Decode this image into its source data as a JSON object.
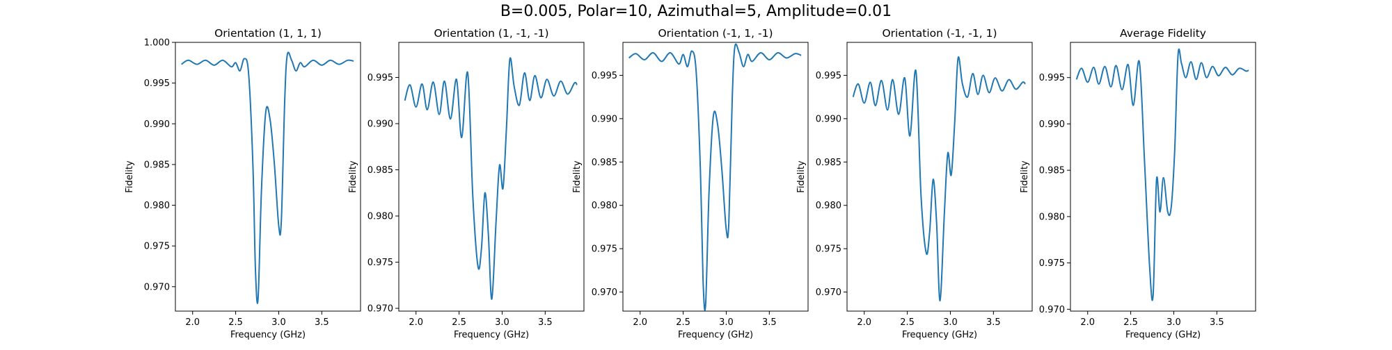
{
  "figure": {
    "title": "B=0.005, Polar=10, Azimuthal=5, Amplitude=0.01"
  },
  "colors": {
    "line": "#1f77b4",
    "axes": "#000000",
    "background": "#ffffff"
  },
  "chart_data": [
    {
      "type": "line",
      "title": "Orientation (1, 1, 1)",
      "xlabel": "Frequency (GHz)",
      "ylabel": "Fidelity",
      "xlim": [
        1.8,
        3.95
      ],
      "ylim": [
        0.967,
        1.0
      ],
      "xticks": [
        2.0,
        2.5,
        3.0,
        3.5
      ],
      "xtick_labels": [
        "2.0",
        "2.5",
        "3.0",
        "3.5"
      ],
      "yticks": [
        0.97,
        0.975,
        0.98,
        0.985,
        0.99,
        0.995,
        1.0
      ],
      "ytick_labels": [
        "0.970",
        "0.975",
        "0.980",
        "0.985",
        "0.990",
        "0.995",
        "1.000"
      ],
      "grid": false,
      "series": [
        {
          "x": [
            1.87,
            1.95,
            2.05,
            2.15,
            2.25,
            2.35,
            2.45,
            2.5,
            2.55,
            2.6,
            2.65,
            2.7,
            2.73,
            2.76,
            2.8,
            2.85,
            2.9,
            2.95,
            3.0,
            3.03,
            3.07,
            3.1,
            3.15,
            3.2,
            3.25,
            3.3,
            3.4,
            3.5,
            3.6,
            3.7,
            3.8,
            3.87
          ],
          "y": [
            0.9973,
            0.9978,
            0.9973,
            0.9978,
            0.9972,
            0.9978,
            0.997,
            0.9975,
            0.9965,
            0.998,
            0.9962,
            0.985,
            0.972,
            0.9685,
            0.982,
            0.9915,
            0.9905,
            0.985,
            0.9775,
            0.978,
            0.993,
            0.9985,
            0.9978,
            0.9965,
            0.9975,
            0.997,
            0.9978,
            0.9972,
            0.9978,
            0.9973,
            0.9978,
            0.9977
          ]
        }
      ]
    },
    {
      "type": "line",
      "title": "Orientation (1, -1, -1)",
      "xlabel": "Frequency (GHz)",
      "ylabel": "Fidelity",
      "xlim": [
        1.8,
        3.95
      ],
      "ylim": [
        0.9697,
        0.9988
      ],
      "xticks": [
        2.0,
        2.5,
        3.0,
        3.5
      ],
      "xtick_labels": [
        "2.0",
        "2.5",
        "3.0",
        "3.5"
      ],
      "yticks": [
        0.97,
        0.975,
        0.98,
        0.985,
        0.99,
        0.995
      ],
      "ytick_labels": [
        "0.970",
        "0.975",
        "0.980",
        "0.985",
        "0.990",
        "0.995"
      ],
      "grid": false,
      "series": [
        {
          "x": [
            1.87,
            1.93,
            2.0,
            2.07,
            2.13,
            2.2,
            2.27,
            2.33,
            2.4,
            2.47,
            2.53,
            2.6,
            2.66,
            2.72,
            2.76,
            2.8,
            2.84,
            2.88,
            2.93,
            2.97,
            3.01,
            3.05,
            3.09,
            3.14,
            3.2,
            3.26,
            3.32,
            3.38,
            3.45,
            3.52,
            3.6,
            3.68,
            3.76,
            3.84,
            3.87
          ],
          "y": [
            0.9925,
            0.9942,
            0.9918,
            0.9943,
            0.9915,
            0.9945,
            0.991,
            0.9946,
            0.9905,
            0.9948,
            0.9885,
            0.9955,
            0.982,
            0.9745,
            0.9765,
            0.9825,
            0.978,
            0.971,
            0.9795,
            0.9855,
            0.983,
            0.9895,
            0.997,
            0.994,
            0.992,
            0.9955,
            0.9925,
            0.9952,
            0.9928,
            0.9948,
            0.993,
            0.9946,
            0.9932,
            0.9944,
            0.9942
          ]
        }
      ]
    },
    {
      "type": "line",
      "title": "Orientation (-1, 1, -1)",
      "xlabel": "Frequency (GHz)",
      "ylabel": "Fidelity",
      "xlim": [
        1.8,
        3.95
      ],
      "ylim": [
        0.9678,
        0.9988
      ],
      "xticks": [
        2.0,
        2.5,
        3.0,
        3.5
      ],
      "xtick_labels": [
        "2.0",
        "2.5",
        "3.0",
        "3.5"
      ],
      "yticks": [
        0.97,
        0.975,
        0.98,
        0.985,
        0.99,
        0.995
      ],
      "ytick_labels": [
        "0.970",
        "0.975",
        "0.980",
        "0.985",
        "0.990",
        "0.995"
      ],
      "grid": false,
      "series": [
        {
          "x": [
            1.87,
            1.95,
            2.05,
            2.15,
            2.25,
            2.35,
            2.45,
            2.5,
            2.55,
            2.6,
            2.65,
            2.7,
            2.73,
            2.76,
            2.8,
            2.85,
            2.9,
            2.95,
            3.0,
            3.03,
            3.07,
            3.1,
            3.15,
            3.2,
            3.25,
            3.3,
            3.4,
            3.5,
            3.6,
            3.7,
            3.8,
            3.87
          ],
          "y": [
            0.997,
            0.9975,
            0.9968,
            0.9976,
            0.9966,
            0.9976,
            0.9963,
            0.9974,
            0.996,
            0.9978,
            0.9955,
            0.984,
            0.9715,
            0.9685,
            0.9815,
            0.9903,
            0.9893,
            0.984,
            0.9772,
            0.978,
            0.9925,
            0.9983,
            0.9976,
            0.996,
            0.9974,
            0.9966,
            0.9976,
            0.9968,
            0.9976,
            0.997,
            0.9975,
            0.9973
          ]
        }
      ]
    },
    {
      "type": "line",
      "title": "Orientation (-1, -1, 1)",
      "xlabel": "Frequency (GHz)",
      "ylabel": "Fidelity",
      "xlim": [
        1.8,
        3.95
      ],
      "ylim": [
        0.9678,
        0.9988
      ],
      "xticks": [
        2.0,
        2.5,
        3.0,
        3.5
      ],
      "xtick_labels": [
        "2.0",
        "2.5",
        "3.0",
        "3.5"
      ],
      "yticks": [
        0.97,
        0.975,
        0.98,
        0.985,
        0.99,
        0.995
      ],
      "ytick_labels": [
        "0.970",
        "0.975",
        "0.980",
        "0.985",
        "0.990",
        "0.995"
      ],
      "grid": false,
      "series": [
        {
          "x": [
            1.87,
            1.93,
            2.0,
            2.07,
            2.13,
            2.2,
            2.27,
            2.33,
            2.4,
            2.47,
            2.53,
            2.6,
            2.66,
            2.72,
            2.76,
            2.8,
            2.84,
            2.88,
            2.93,
            2.97,
            3.01,
            3.05,
            3.09,
            3.14,
            3.2,
            3.26,
            3.32,
            3.38,
            3.45,
            3.52,
            3.6,
            3.68,
            3.76,
            3.84,
            3.87
          ],
          "y": [
            0.9925,
            0.994,
            0.9918,
            0.9942,
            0.9915,
            0.9944,
            0.991,
            0.9945,
            0.9905,
            0.9947,
            0.988,
            0.9955,
            0.981,
            0.9745,
            0.977,
            0.983,
            0.978,
            0.969,
            0.979,
            0.986,
            0.9835,
            0.9895,
            0.997,
            0.994,
            0.9925,
            0.9952,
            0.9928,
            0.995,
            0.993,
            0.9947,
            0.9932,
            0.9945,
            0.9934,
            0.9942,
            0.994
          ]
        }
      ]
    },
    {
      "type": "line",
      "title": "Average Fidelity",
      "xlabel": "Frequency (GHz)",
      "ylabel": "Fidelity",
      "xlim": [
        1.8,
        3.95
      ],
      "ylim": [
        0.9698,
        0.9988
      ],
      "xticks": [
        2.0,
        2.5,
        3.0,
        3.5
      ],
      "xtick_labels": [
        "2.0",
        "2.5",
        "3.0",
        "3.5"
      ],
      "yticks": [
        0.97,
        0.975,
        0.98,
        0.985,
        0.99,
        0.995
      ],
      "ytick_labels": [
        "0.970",
        "0.975",
        "0.980",
        "0.985",
        "0.990",
        "0.995"
      ],
      "grid": false,
      "series": [
        {
          "x": [
            1.87,
            1.93,
            2.0,
            2.07,
            2.13,
            2.2,
            2.27,
            2.33,
            2.4,
            2.47,
            2.53,
            2.6,
            2.66,
            2.72,
            2.76,
            2.8,
            2.84,
            2.88,
            2.93,
            2.97,
            3.01,
            3.05,
            3.09,
            3.14,
            3.2,
            3.26,
            3.32,
            3.38,
            3.45,
            3.52,
            3.6,
            3.68,
            3.76,
            3.84,
            3.87
          ],
          "y": [
            0.9948,
            0.996,
            0.9945,
            0.9961,
            0.9943,
            0.9962,
            0.994,
            0.9963,
            0.9937,
            0.9964,
            0.992,
            0.9967,
            0.986,
            0.9745,
            0.9715,
            0.984,
            0.9805,
            0.9842,
            0.9805,
            0.981,
            0.987,
            0.9975,
            0.9965,
            0.995,
            0.9967,
            0.9948,
            0.9966,
            0.995,
            0.9962,
            0.9952,
            0.9961,
            0.9953,
            0.996,
            0.9957,
            0.9958
          ]
        }
      ]
    }
  ]
}
